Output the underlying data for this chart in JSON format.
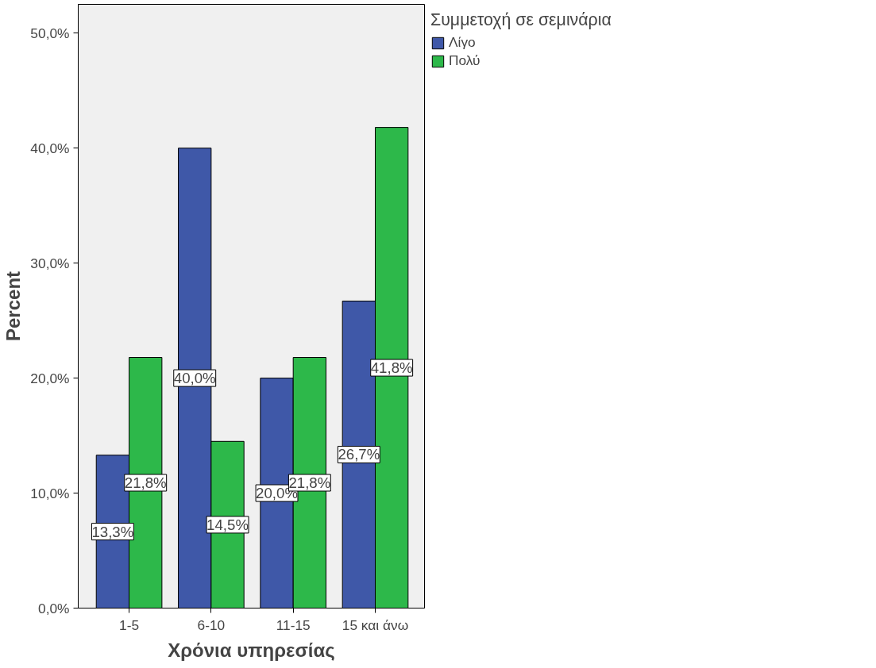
{
  "chart_data": {
    "type": "bar",
    "xlabel": "Χρόνια υπηρεσίας",
    "ylabel": "Percent",
    "legend_title": "Συμμετοχή σε σεμινάρια",
    "categories": [
      "1-5",
      "6-10",
      "11-15",
      "15 και άνω"
    ],
    "series": [
      {
        "name": "Λίγο",
        "color": "#3f58a8",
        "values": [
          13.3,
          40.0,
          20.0,
          26.7
        ],
        "value_labels": [
          "13,3%",
          "40,0%",
          "20,0%",
          "26,7%"
        ]
      },
      {
        "name": "Πολύ",
        "color": "#2db84a",
        "values": [
          21.8,
          14.5,
          21.8,
          41.8
        ],
        "value_labels": [
          "21,8%",
          "14,5%",
          "21,8%",
          "41,8%"
        ]
      }
    ],
    "ylim": [
      0,
      52.5
    ],
    "yticks": [
      {
        "value": 0,
        "label": "0,0%"
      },
      {
        "value": 10,
        "label": "10,0%"
      },
      {
        "value": 20,
        "label": "20,0%"
      },
      {
        "value": 30,
        "label": "30,0%"
      },
      {
        "value": 40,
        "label": "40,0%"
      },
      {
        "value": 50,
        "label": "50,0%"
      }
    ],
    "grid": false,
    "legend": "top right"
  }
}
